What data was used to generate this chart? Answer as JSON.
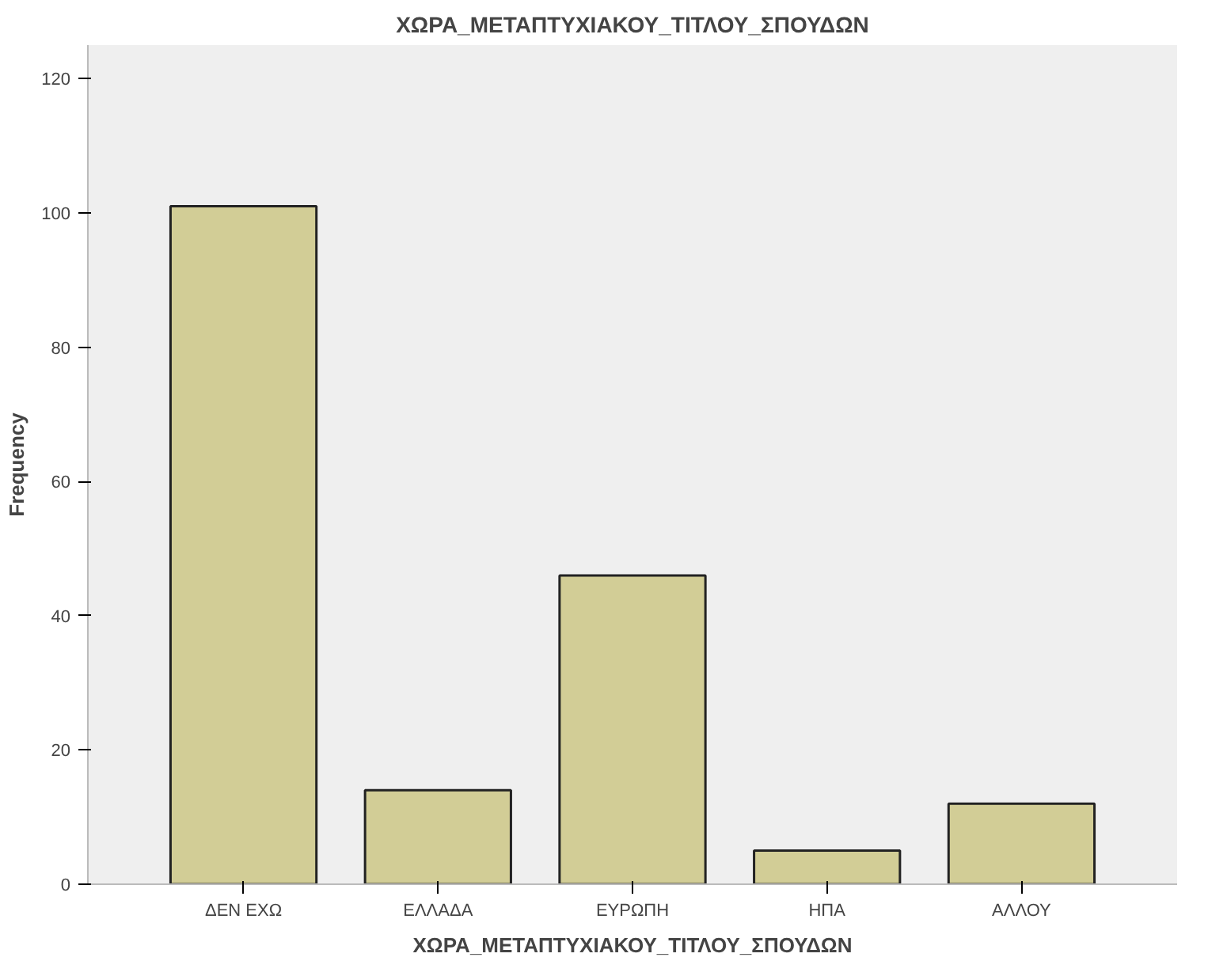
{
  "chart_data": {
    "type": "bar",
    "title": "ΧΩΡΑ_ΜΕΤΑΠΤΥΧΙΑΚΟΥ_ΤΙΤΛΟΥ_ΣΠΟΥΔΩΝ",
    "xlabel": "ΧΩΡΑ_ΜΕΤΑΠΤΥΧΙΑΚΟΥ_ΤΙΤΛΟΥ_ΣΠΟΥΔΩΝ",
    "ylabel": "Frequency",
    "categories": [
      "ΔΕΝ ΕΧΩ",
      "ΕΛΛΑΔΑ",
      "ΕΥΡΩΠΗ",
      "ΗΠΑ",
      "ΑΛΛΟΥ"
    ],
    "values": [
      101,
      14,
      46,
      5,
      12
    ],
    "color": "#d2cd96",
    "ylim": [
      0,
      125
    ],
    "yticks": [
      0,
      20,
      40,
      60,
      80,
      100,
      120
    ],
    "grid": false
  }
}
